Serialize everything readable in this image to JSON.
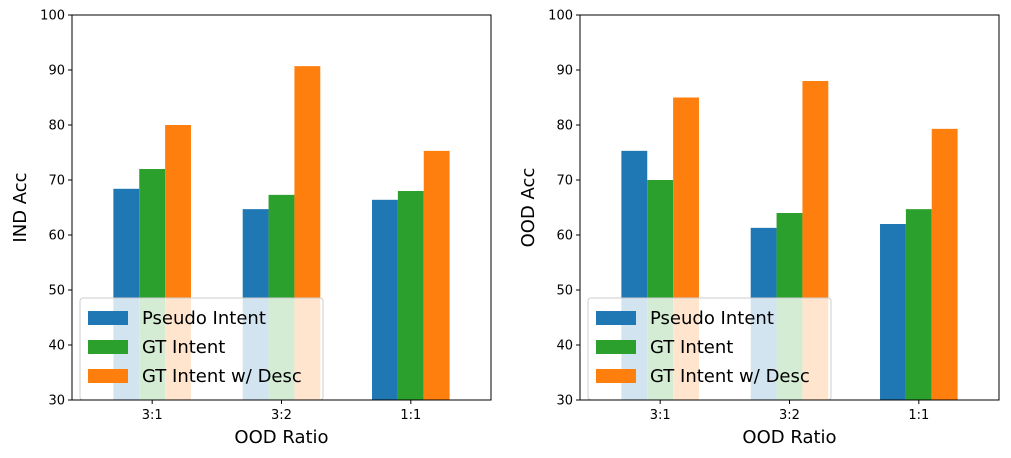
{
  "chart_data": [
    {
      "type": "bar",
      "categories": [
        "3:1",
        "3:2",
        "1:1"
      ],
      "series": [
        {
          "name": "Pseudo Intent",
          "color": "#1f77b4",
          "values": [
            68.4,
            64.7,
            66.4
          ]
        },
        {
          "name": "GT Intent",
          "color": "#2ca02c",
          "values": [
            72.0,
            67.3,
            68.0
          ]
        },
        {
          "name": "GT Intent w/ Desc",
          "color": "#ff7f0e",
          "values": [
            80.0,
            90.7,
            75.3
          ]
        }
      ],
      "xlabel": "OOD Ratio",
      "ylabel": "IND Acc",
      "ylim": [
        30,
        100
      ],
      "yticks": [
        30,
        40,
        50,
        60,
        70,
        80,
        90,
        100
      ],
      "legend": "lower-left"
    },
    {
      "type": "bar",
      "categories": [
        "3:1",
        "3:2",
        "1:1"
      ],
      "series": [
        {
          "name": "Pseudo Intent",
          "color": "#1f77b4",
          "values": [
            75.3,
            61.3,
            62.0
          ]
        },
        {
          "name": "GT Intent",
          "color": "#2ca02c",
          "values": [
            70.0,
            64.0,
            64.7
          ]
        },
        {
          "name": "GT Intent w/ Desc",
          "color": "#ff7f0e",
          "values": [
            85.0,
            88.0,
            79.3
          ]
        }
      ],
      "xlabel": "OOD Ratio",
      "ylabel": "OOD Acc",
      "ylim": [
        30,
        100
      ],
      "yticks": [
        30,
        40,
        50,
        60,
        70,
        80,
        90,
        100
      ],
      "legend": "lower-left"
    }
  ]
}
